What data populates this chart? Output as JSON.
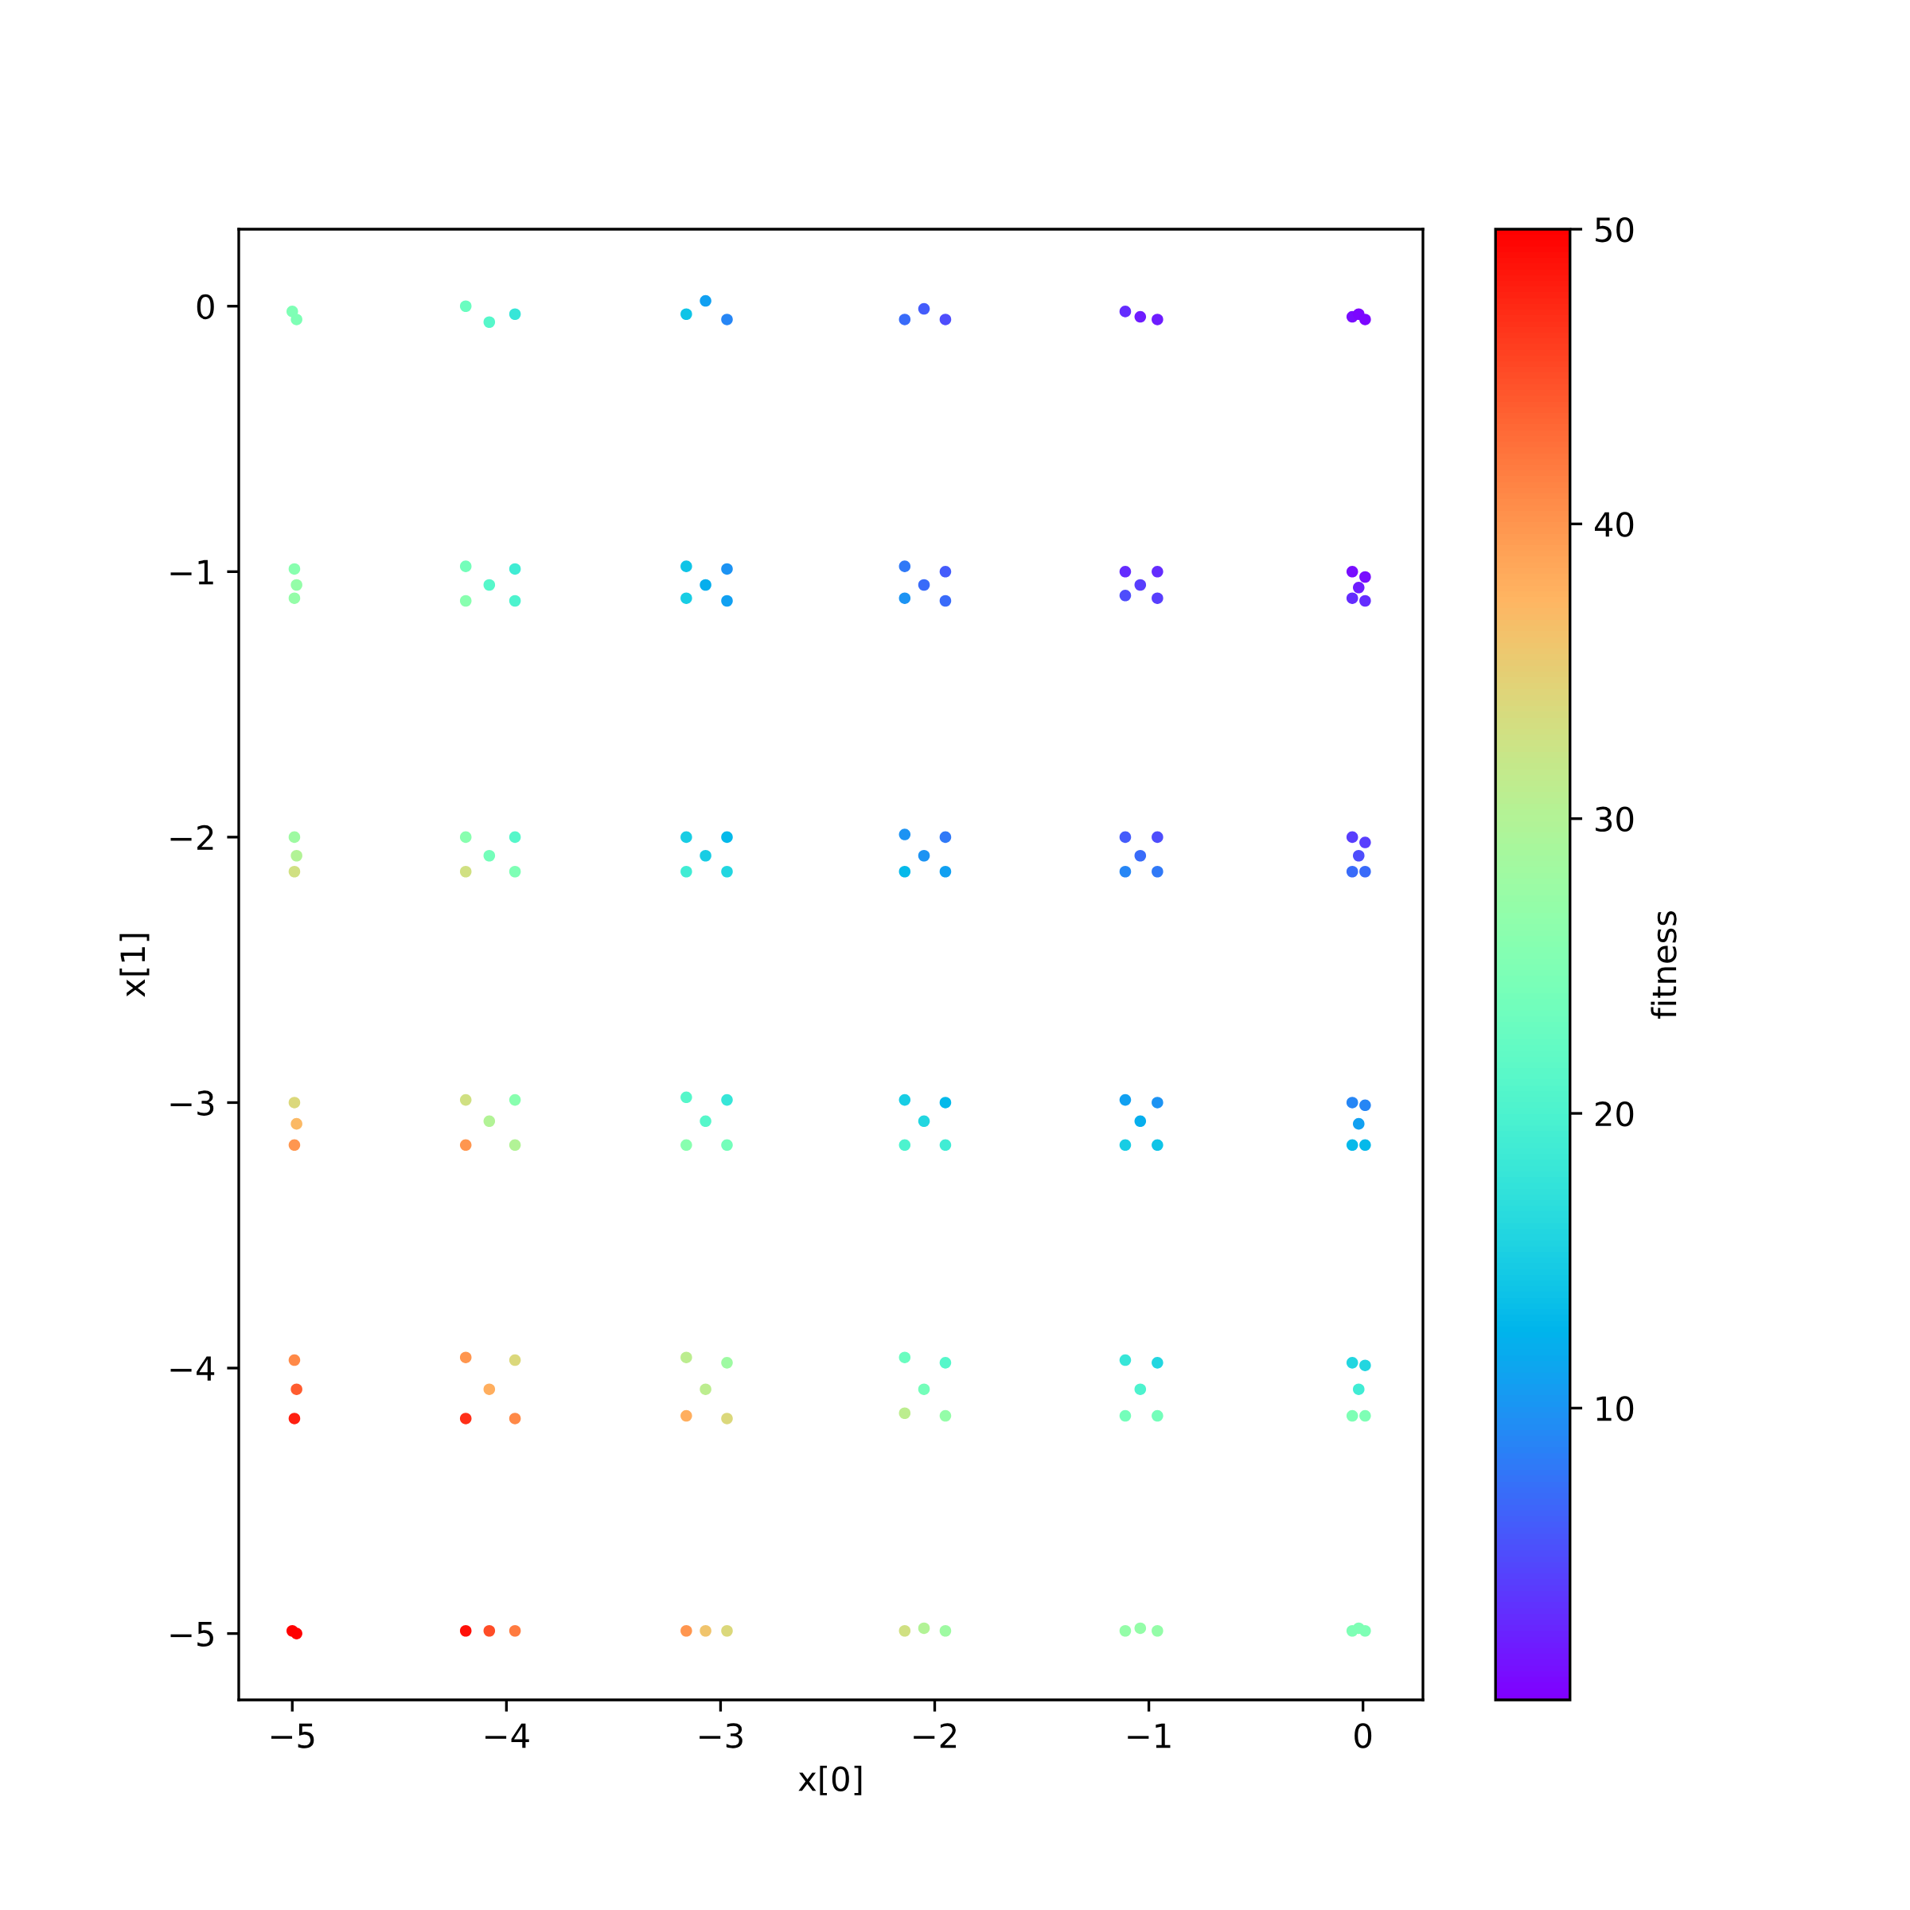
{
  "chart_data": {
    "type": "scatter",
    "xlabel": "x[0]",
    "ylabel": "x[1]",
    "clabel": "fitness",
    "marker": "circle",
    "xlim": [
      -5.25,
      0.28
    ],
    "ylim": [
      -5.25,
      0.29
    ],
    "xticks": [
      {
        "value": -5,
        "label": "−5"
      },
      {
        "value": -4,
        "label": "−4"
      },
      {
        "value": -3,
        "label": "−3"
      },
      {
        "value": -2,
        "label": "−2"
      },
      {
        "value": -1,
        "label": "−1"
      },
      0
    ],
    "yticks": [
      {
        "value": -5,
        "label": "−5"
      },
      {
        "value": -4,
        "label": "−4"
      },
      {
        "value": -3,
        "label": "−3"
      },
      {
        "value": -2,
        "label": "−2"
      },
      {
        "value": -1,
        "label": "−1"
      },
      0
    ],
    "clim": [
      0.1,
      50
    ],
    "cticks": [
      10,
      20,
      30,
      40,
      50
    ],
    "x": [
      -5.0,
      -4.98,
      -4.19,
      -4.08,
      -3.96,
      -3.16,
      -3.07,
      -2.97,
      -2.14,
      -2.05,
      -1.95,
      -1.11,
      -1.04,
      -0.96,
      -0.05,
      -0.02,
      0.01,
      -4.99,
      -4.98,
      -4.99,
      -4.19,
      -3.96,
      -4.08,
      -4.19,
      -3.96,
      -3.16,
      -2.97,
      -3.07,
      -3.16,
      -2.97,
      -2.14,
      -1.95,
      -2.05,
      -2.14,
      -1.95,
      -1.11,
      -0.96,
      -1.04,
      -1.11,
      -0.96,
      -0.05,
      0.01,
      -0.02,
      -0.05,
      0.01,
      -4.99,
      -4.98,
      -4.99,
      -4.19,
      -3.96,
      -4.08,
      -4.19,
      -3.96,
      -3.16,
      -2.97,
      -3.07,
      -3.16,
      -2.97,
      -2.14,
      -1.95,
      -2.05,
      -2.14,
      -1.95,
      -1.11,
      -0.96,
      -1.04,
      -1.11,
      -0.96,
      -0.05,
      0.01,
      -0.02,
      -0.05,
      0.01,
      -4.99,
      -4.98,
      -4.99,
      -4.19,
      -3.96,
      -4.08,
      -4.19,
      -3.96,
      -3.16,
      -2.97,
      -3.07,
      -3.16,
      -2.97,
      -2.14,
      -1.95,
      -2.05,
      -2.14,
      -1.95,
      -1.11,
      -0.96,
      -1.04,
      -1.11,
      -0.96,
      -0.05,
      0.01,
      -0.02,
      -0.05,
      0.01,
      -4.99,
      -4.98,
      -4.99,
      -4.19,
      -3.96,
      -4.08,
      -4.19,
      -3.96,
      -3.16,
      -2.97,
      -3.07,
      -3.16,
      -2.97,
      -2.14,
      -1.95,
      -2.05,
      -2.14,
      -1.95,
      -1.11,
      -0.96,
      -1.04,
      -1.11,
      -0.96,
      -0.05,
      0.01,
      -0.02,
      -0.05,
      0.01,
      -5.0,
      -4.98,
      -4.19,
      -4.08,
      -3.96,
      -3.16,
      -3.07,
      -2.97,
      -2.14,
      -2.05,
      -1.95,
      -1.11,
      -1.04,
      -0.96,
      -0.05,
      -0.02,
      0.01
    ],
    "values": [
      -0.02,
      -0.05,
      0.0,
      -0.06,
      -0.03,
      -0.03,
      0.02,
      -0.05,
      -0.05,
      -0.01,
      -0.05,
      -0.02,
      -0.04,
      -0.05,
      -0.04,
      -0.03,
      -0.05,
      -0.99,
      -1.05,
      -1.1,
      -0.98,
      -0.99,
      -1.05,
      -1.11,
      -1.11,
      -0.98,
      -0.99,
      -1.05,
      -1.1,
      -1.11,
      -0.98,
      -1.0,
      -1.05,
      -1.1,
      -1.11,
      -1.0,
      -1.0,
      -1.05,
      -1.09,
      -1.1,
      -1.0,
      -1.02,
      -1.06,
      -1.1,
      -1.11,
      -2.0,
      -2.07,
      -2.13,
      -2.0,
      -2.0,
      -2.07,
      -2.13,
      -2.13,
      -2.0,
      -2.0,
      -2.07,
      -2.13,
      -2.13,
      -1.99,
      -2.0,
      -2.07,
      -2.13,
      -2.13,
      -2.0,
      -2.0,
      -2.07,
      -2.13,
      -2.13,
      -2.0,
      -2.02,
      -2.07,
      -2.13,
      -2.13,
      -3.0,
      -3.08,
      -3.16,
      -2.99,
      -2.99,
      -3.07,
      -3.16,
      -3.16,
      -2.98,
      -2.99,
      -3.07,
      -3.16,
      -3.16,
      -2.99,
      -3.0,
      -3.07,
      -3.16,
      -3.16,
      -2.99,
      -3.0,
      -3.07,
      -3.16,
      -3.16,
      -3.0,
      -3.01,
      -3.08,
      -3.16,
      -3.16,
      -3.97,
      -4.08,
      -4.19,
      -3.96,
      -3.97,
      -4.08,
      -4.19,
      -4.19,
      -3.96,
      -3.98,
      -4.08,
      -4.18,
      -4.19,
      -3.96,
      -3.98,
      -4.08,
      -4.17,
      -4.18,
      -3.97,
      -3.98,
      -4.08,
      -4.18,
      -4.18,
      -3.98,
      -3.99,
      -4.08,
      -4.18,
      -4.18,
      -4.99,
      -5.0,
      -4.99,
      -4.99,
      -4.99,
      -4.99,
      -4.99,
      -4.99,
      -4.99,
      -4.98,
      -4.99,
      -4.99,
      -4.98,
      -4.99,
      -4.99,
      -4.98,
      -4.99
    ],
    "cvalues": [
      25,
      25,
      23,
      21,
      18,
      14,
      11,
      9,
      7,
      6,
      5,
      3,
      2,
      2,
      1,
      0.5,
      0.5,
      26,
      27,
      27,
      24,
      19,
      21,
      26,
      20,
      14,
      10,
      12,
      15,
      11,
      8,
      6,
      7,
      10,
      7,
      3,
      3,
      4,
      5,
      4,
      1,
      1,
      2,
      3,
      3,
      28,
      30,
      33,
      26,
      21,
      24,
      33,
      25,
      15,
      13,
      15,
      19,
      16,
      10,
      8,
      10,
      13,
      11,
      6,
      5,
      7,
      9,
      8,
      4,
      4,
      5,
      7,
      7,
      34,
      37,
      40,
      33,
      26,
      30,
      40,
      30,
      21,
      18,
      21,
      26,
      24,
      15,
      13,
      16,
      20,
      19,
      11,
      10,
      12,
      15,
      14,
      9,
      9,
      11,
      13,
      13,
      41,
      44,
      48,
      40,
      34,
      38,
      47,
      41,
      31,
      28,
      31,
      38,
      34,
      23,
      21,
      24,
      31,
      27,
      18,
      16,
      20,
      24,
      24,
      16,
      16,
      19,
      25,
      25,
      50,
      50,
      49,
      45,
      42,
      40,
      36,
      34,
      33,
      30,
      28,
      27,
      27,
      27,
      25,
      25,
      25
    ]
  }
}
